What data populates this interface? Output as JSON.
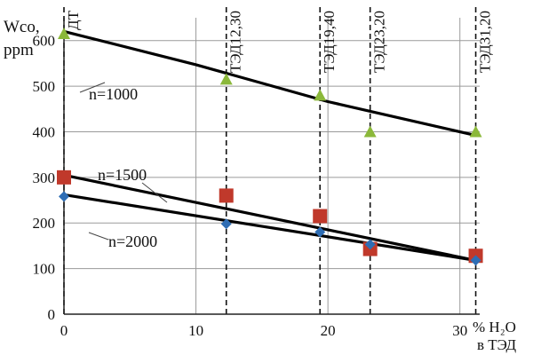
{
  "chart_data": {
    "type": "scatter",
    "ylabel_line1": "Wco,",
    "ylabel_line2": "ppm",
    "xlabel_line1": "% H₂O",
    "xlabel_line2": "в ТЭД",
    "xlim": [
      0,
      31.5
    ],
    "ylim": [
      0,
      650
    ],
    "x_ticks": [
      0,
      10,
      20,
      30
    ],
    "y_ticks": [
      0,
      100,
      200,
      300,
      400,
      500,
      600
    ],
    "grid": true,
    "fuel_lines": [
      {
        "x": 0,
        "label": "ДТ"
      },
      {
        "x": 12.3,
        "label": "ТЭД12,30"
      },
      {
        "x": 19.4,
        "label": "ТЭД19,40"
      },
      {
        "x": 23.2,
        "label": "ТЭД23,20"
      },
      {
        "x": 31.2,
        "label": "ТЭД31,20"
      }
    ],
    "series": [
      {
        "name": "n=1000",
        "marker": "triangle",
        "color": "#8bb83a",
        "x": [
          0,
          12.3,
          19.4,
          23.2,
          31.2
        ],
        "values": [
          615,
          515,
          480,
          400,
          400
        ],
        "trend": [
          [
            0,
            620
          ],
          [
            10,
            547
          ],
          [
            20,
            466
          ],
          [
            31.2,
            392
          ]
        ]
      },
      {
        "name": "n=1500",
        "marker": "square",
        "color": "#c0392b",
        "x": [
          0,
          12.3,
          19.4,
          23.2,
          31.2
        ],
        "values": [
          300,
          260,
          215,
          143,
          128
        ],
        "trend": [
          [
            0,
            305
          ],
          [
            31.2,
            118
          ]
        ]
      },
      {
        "name": "n=2000",
        "marker": "diamond",
        "color": "#2e6db4",
        "x": [
          0,
          12.3,
          19.4,
          23.2,
          31.2
        ],
        "values": [
          258,
          198,
          180,
          153,
          118
        ],
        "trend": [
          [
            0,
            262
          ],
          [
            31.2,
            118
          ]
        ]
      }
    ]
  }
}
